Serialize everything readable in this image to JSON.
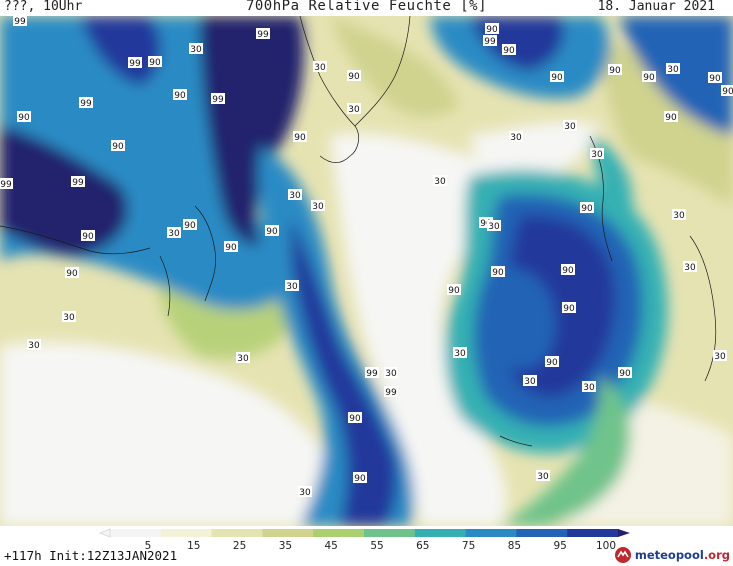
{
  "header": {
    "left": "???, 10Uhr",
    "title": "700hPa Relative Feuchte [%]",
    "date": "18. Januar 2021"
  },
  "footer": {
    "run_info": "+117h Init:12Z13JAN2021",
    "brand": "meteopool",
    "brand_suffix": ".org"
  },
  "legend": {
    "ticks": [
      "5",
      "15",
      "25",
      "35",
      "45",
      "55",
      "65",
      "75",
      "85",
      "95",
      "100"
    ],
    "colors": [
      "#f4f4f4",
      "#f3f1d8",
      "#e6e3b2",
      "#cfd38e",
      "#a9cf6f",
      "#6fc38a",
      "#34b0b3",
      "#2a8bc4",
      "#2463b5",
      "#22399b",
      "#23216d"
    ]
  },
  "map": {
    "variable": "relative humidity 700 hPa",
    "contour_labels": [
      "99",
      "90",
      "30"
    ]
  }
}
